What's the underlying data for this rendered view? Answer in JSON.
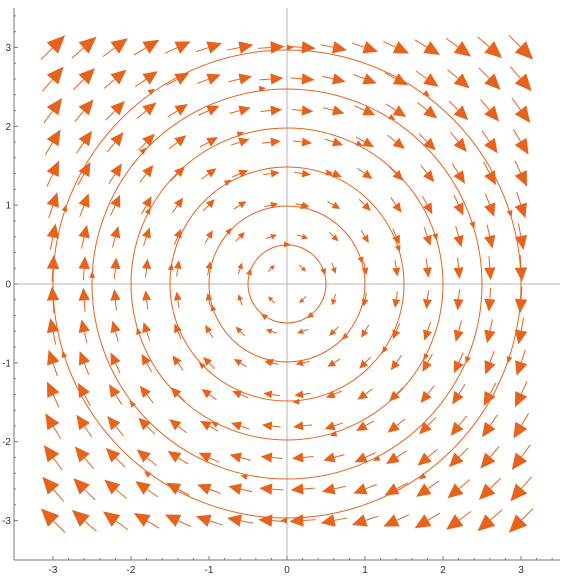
{
  "chart_data": {
    "type": "vector_field",
    "title": "",
    "xlabel": "",
    "ylabel": "",
    "field": {
      "u": "y",
      "v": "-x"
    },
    "xlim": [
      -3.5,
      3.5
    ],
    "ylim": [
      -3.5,
      3.5
    ],
    "xticks": [
      -3,
      -2,
      -1,
      0,
      1,
      2,
      3
    ],
    "yticks": [
      -3,
      -2,
      -1,
      0,
      1,
      2,
      3
    ],
    "xtick_labels": [
      "-3",
      "-2",
      "-1",
      "0",
      "1",
      "2",
      "3"
    ],
    "ytick_labels": [
      "-3",
      "-2",
      "-1",
      "0",
      "1",
      "2",
      "3"
    ],
    "arrow_grid": {
      "range": [
        -3,
        3
      ],
      "count": 16
    },
    "streamline_radii": [
      0.5,
      1.0,
      1.5,
      2.0,
      2.5,
      3.0
    ],
    "color": "#e5631c",
    "grid": false,
    "origin_axes": true
  }
}
